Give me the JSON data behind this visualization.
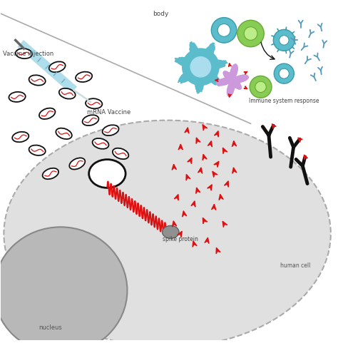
{
  "bg_color": "#ffffff",
  "cell_color": "#e0e0e0",
  "cell_outline": "#aaaaaa",
  "nucleus_color": "#b8b8b8",
  "nucleus_outline": "#888888",
  "red_color": "#dd1111",
  "black_color": "#111111",
  "teal_color": "#5bbccc",
  "teal_dark": "#3a9aaa",
  "teal_inner": "#ffffff",
  "green_color": "#88cc55",
  "green_inner": "#aaddaa",
  "purple_color": "#cc99dd",
  "antibody_color": "#5599bb",
  "gray_color": "#888888",
  "syringe_color": "#aaddee",
  "labels": {
    "body": "body",
    "vaccine_injection": "Vaccine injection",
    "mrna_vaccine": "mRNA Vaccine",
    "immune_response": "Immune system response",
    "spike_protein": "spike protein",
    "nucleus": "nucleus",
    "human_cell": "human cell"
  },
  "figure_width": 4.74,
  "figure_height": 4.89
}
